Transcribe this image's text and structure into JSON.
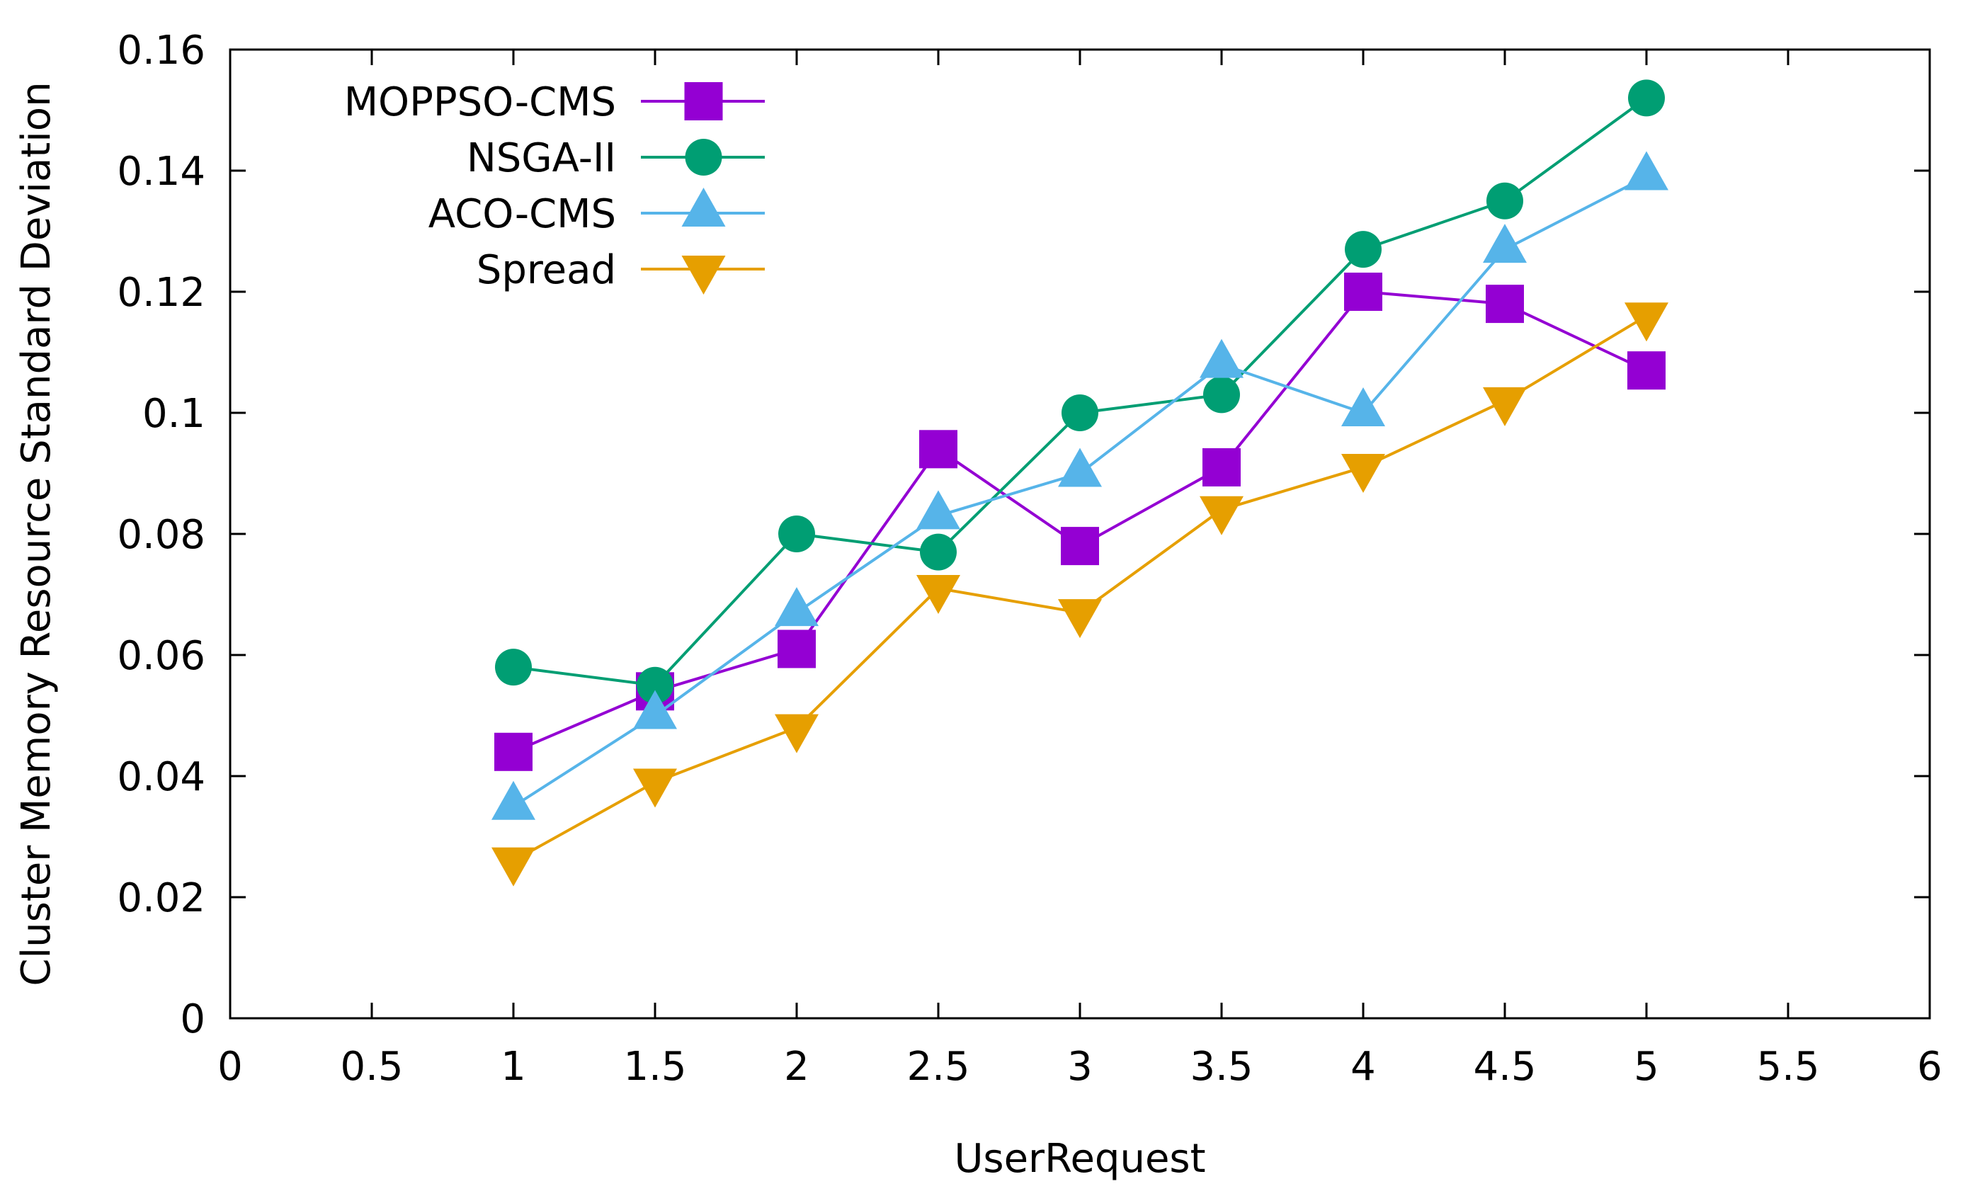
{
  "chart_data": {
    "type": "line",
    "title": "",
    "xlabel": "UserRequest",
    "ylabel": "Cluster Memory Resource Standard Deviation",
    "xlim": [
      0,
      6
    ],
    "ylim": [
      0,
      0.16
    ],
    "xticks": [
      "0",
      "0.5",
      "1",
      "1.5",
      "2",
      "2.5",
      "3",
      "3.5",
      "4",
      "4.5",
      "5",
      "5.5",
      "6"
    ],
    "yticks": [
      "0",
      "0.02",
      "0.04",
      "0.06",
      "0.08",
      "0.1",
      "0.12",
      "0.14",
      "0.16"
    ],
    "xtick_values": [
      0,
      0.5,
      1,
      1.5,
      2,
      2.5,
      3,
      3.5,
      4,
      4.5,
      5,
      5.5,
      6
    ],
    "ytick_values": [
      0,
      0.02,
      0.04,
      0.06,
      0.08,
      0.1,
      0.12,
      0.14,
      0.16
    ],
    "legend_position": "top-left",
    "grid": false,
    "x": [
      1,
      1.5,
      2,
      2.5,
      3,
      3.5,
      4,
      4.5,
      5
    ],
    "series": [
      {
        "name": "MOPPSO-CMS",
        "color": "#9400d3",
        "marker": "square",
        "values": [
          0.044,
          0.054,
          0.061,
          0.094,
          0.078,
          0.091,
          0.12,
          0.118,
          0.107
        ]
      },
      {
        "name": "NSGA-II",
        "color": "#009e73",
        "marker": "circle",
        "values": [
          0.058,
          0.055,
          0.08,
          0.077,
          0.1,
          0.103,
          0.127,
          0.135,
          0.152
        ]
      },
      {
        "name": "ACO-CMS",
        "color": "#56b4e9",
        "marker": "triangle-up",
        "values": [
          0.035,
          0.05,
          0.067,
          0.083,
          0.09,
          0.108,
          0.1,
          0.127,
          0.139
        ]
      },
      {
        "name": "Spread",
        "color": "#e69f00",
        "marker": "triangle-down",
        "values": [
          0.026,
          0.039,
          0.048,
          0.071,
          0.067,
          0.084,
          0.091,
          0.102,
          0.116
        ]
      }
    ]
  }
}
